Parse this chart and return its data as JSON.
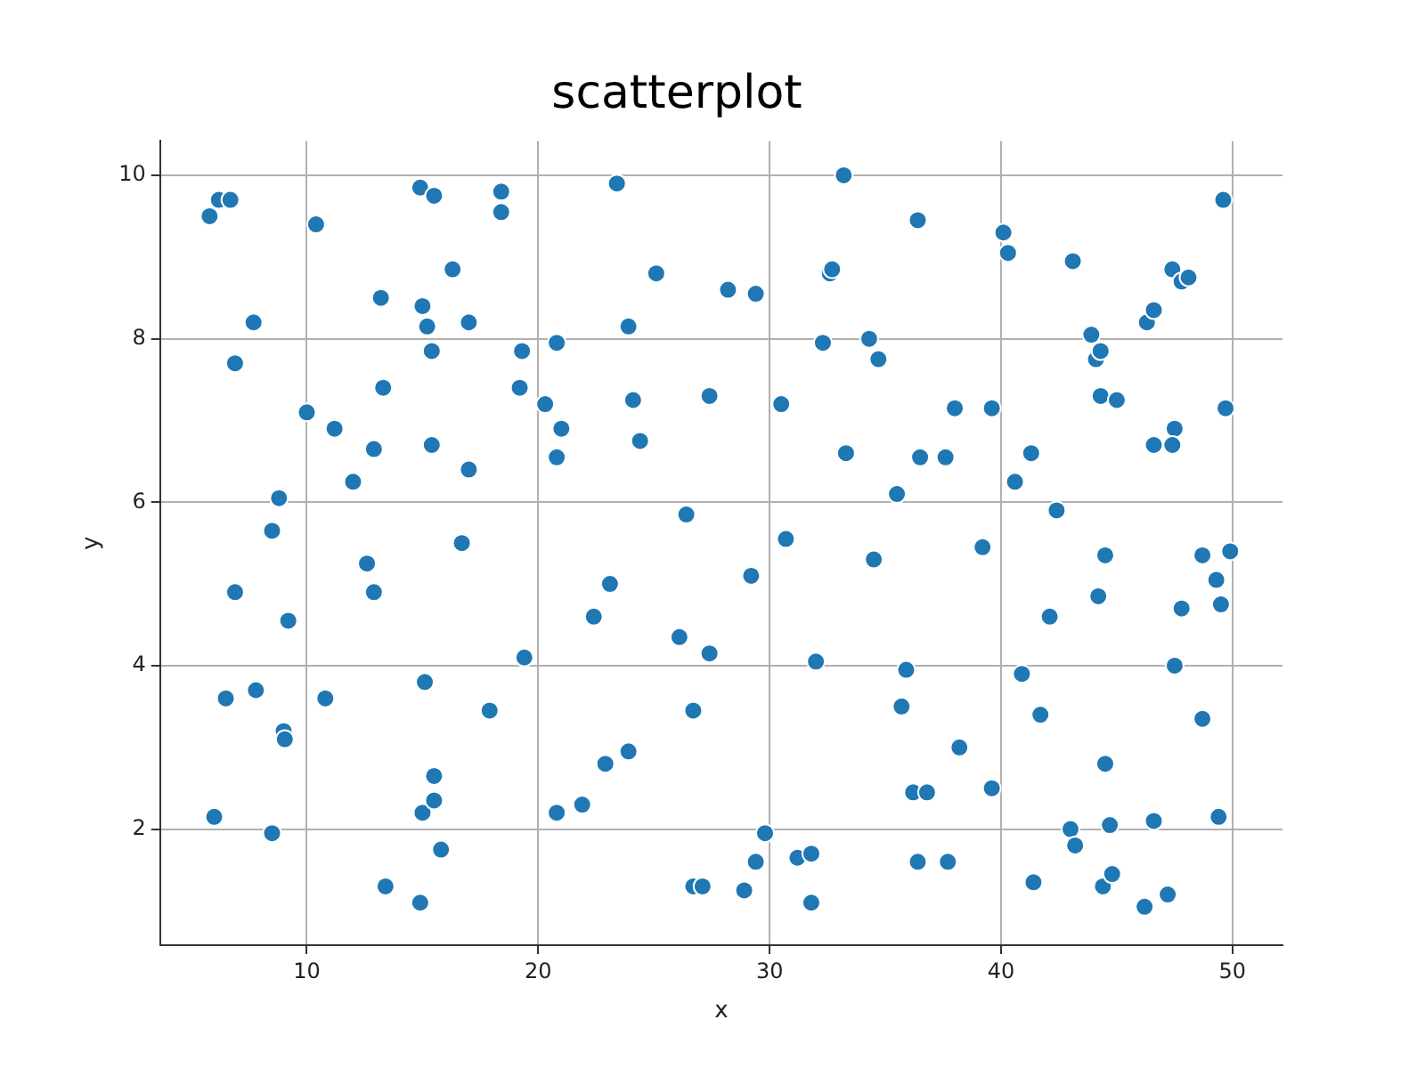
{
  "chart_data": {
    "type": "scatter",
    "title": "scatterplot",
    "xlabel": "x",
    "ylabel": "y",
    "xlim": [
      3.66,
      52.16
    ],
    "ylim": [
      0.58,
      10.42
    ],
    "xticks": [
      10,
      20,
      30,
      40,
      50
    ],
    "yticks": [
      2,
      4,
      6,
      8,
      10
    ],
    "grid": true,
    "marker": "circle",
    "legend": false,
    "series": [
      {
        "color": "#1f77b4",
        "x": [
          5.8,
          6.2,
          6.7,
          10.4,
          7.7,
          6.9,
          10,
          11.2,
          8.8,
          12,
          8.5,
          12.9,
          13.3,
          13.2,
          15,
          15.2,
          14.9,
          15.5,
          6.9,
          9.2,
          12.6,
          12.9,
          6.5,
          7.8,
          9,
          9.05,
          10.8,
          15.1,
          6,
          8.5,
          13.4,
          15,
          15.5,
          15.5,
          15.8,
          14.9,
          15.4,
          15.4,
          16.3,
          17,
          17,
          16.7,
          18.4,
          18.4,
          19.3,
          19.2,
          20.3,
          20.8,
          21,
          20.8,
          19.4,
          17.9,
          20.8,
          21.9,
          22.4,
          22.9,
          23.1,
          23.9,
          23.4,
          23.9,
          24.1,
          24.4,
          25.1,
          26.1,
          26.4,
          26.7,
          27.4,
          27.4,
          26.7,
          27.1,
          28.2,
          29.4,
          29.2,
          29.4,
          28.9,
          29.8,
          30.5,
          30.7,
          31.2,
          31.8,
          31.8,
          32,
          32.3,
          32.6,
          32.7,
          33.2,
          33.3,
          34.3,
          34.5,
          34.7,
          35.5,
          35.7,
          35.9,
          36.2,
          36.4,
          36.5,
          36.4,
          36.8,
          37.6,
          37.7,
          38,
          38.2,
          39.2,
          39.6,
          39.6,
          40.1,
          40.3,
          40.6,
          40.9,
          41.3,
          41.4,
          41.7,
          42.1,
          42.4,
          43.1,
          43,
          43.2,
          43.9,
          44.1,
          44.3,
          44.3,
          44.2,
          44.5,
          44.5,
          44.4,
          44.7,
          44.8,
          45,
          46.2,
          46.3,
          46.6,
          46.6,
          46.6,
          47.2,
          47.4,
          47.5,
          47.4,
          47.5,
          47.8,
          48.1,
          47.8,
          48.7,
          48.7,
          49.3,
          49.5,
          49.4,
          49.6,
          49.7,
          49.9
        ],
        "values": [
          9.5,
          9.7,
          9.7,
          9.4,
          8.2,
          7.7,
          7.1,
          6.9,
          6.05,
          6.25,
          5.65,
          6.65,
          7.4,
          8.5,
          8.4,
          8.15,
          9.85,
          9.75,
          4.9,
          4.55,
          5.25,
          4.9,
          3.6,
          3.7,
          3.2,
          3.1,
          3.6,
          3.8,
          2.15,
          1.95,
          1.3,
          2.2,
          2.65,
          2.35,
          1.75,
          1.1,
          7.85,
          6.7,
          8.85,
          8.2,
          6.4,
          5.5,
          9.55,
          9.8,
          7.85,
          7.4,
          7.2,
          7.95,
          6.9,
          6.55,
          4.1,
          3.45,
          2.2,
          2.3,
          4.6,
          2.8,
          5,
          2.95,
          9.9,
          8.15,
          7.25,
          6.75,
          8.8,
          4.35,
          5.85,
          3.45,
          4.15,
          7.3,
          1.3,
          1.3,
          8.6,
          8.55,
          5.1,
          1.6,
          1.25,
          1.95,
          7.2,
          5.55,
          1.65,
          1.7,
          1.1,
          4.05,
          7.95,
          8.8,
          8.85,
          10,
          6.6,
          8,
          5.3,
          7.75,
          6.1,
          3.5,
          3.95,
          2.45,
          9.45,
          6.55,
          1.6,
          2.45,
          6.55,
          1.6,
          7.15,
          3,
          5.45,
          7.15,
          2.5,
          9.3,
          9.05,
          6.25,
          3.9,
          6.6,
          1.35,
          3.4,
          4.6,
          5.9,
          8.95,
          2,
          1.8,
          8.05,
          7.75,
          7.85,
          7.3,
          4.85,
          5.35,
          2.8,
          1.3,
          2.05,
          1.45,
          7.25,
          1.05,
          8.2,
          8.35,
          6.7,
          2.1,
          1.2,
          8.85,
          6.9,
          6.7,
          4,
          8.7,
          8.75,
          4.7,
          5.35,
          3.35,
          5.05,
          4.75,
          2.15,
          9.7,
          7.15,
          5.4
        ]
      }
    ]
  }
}
